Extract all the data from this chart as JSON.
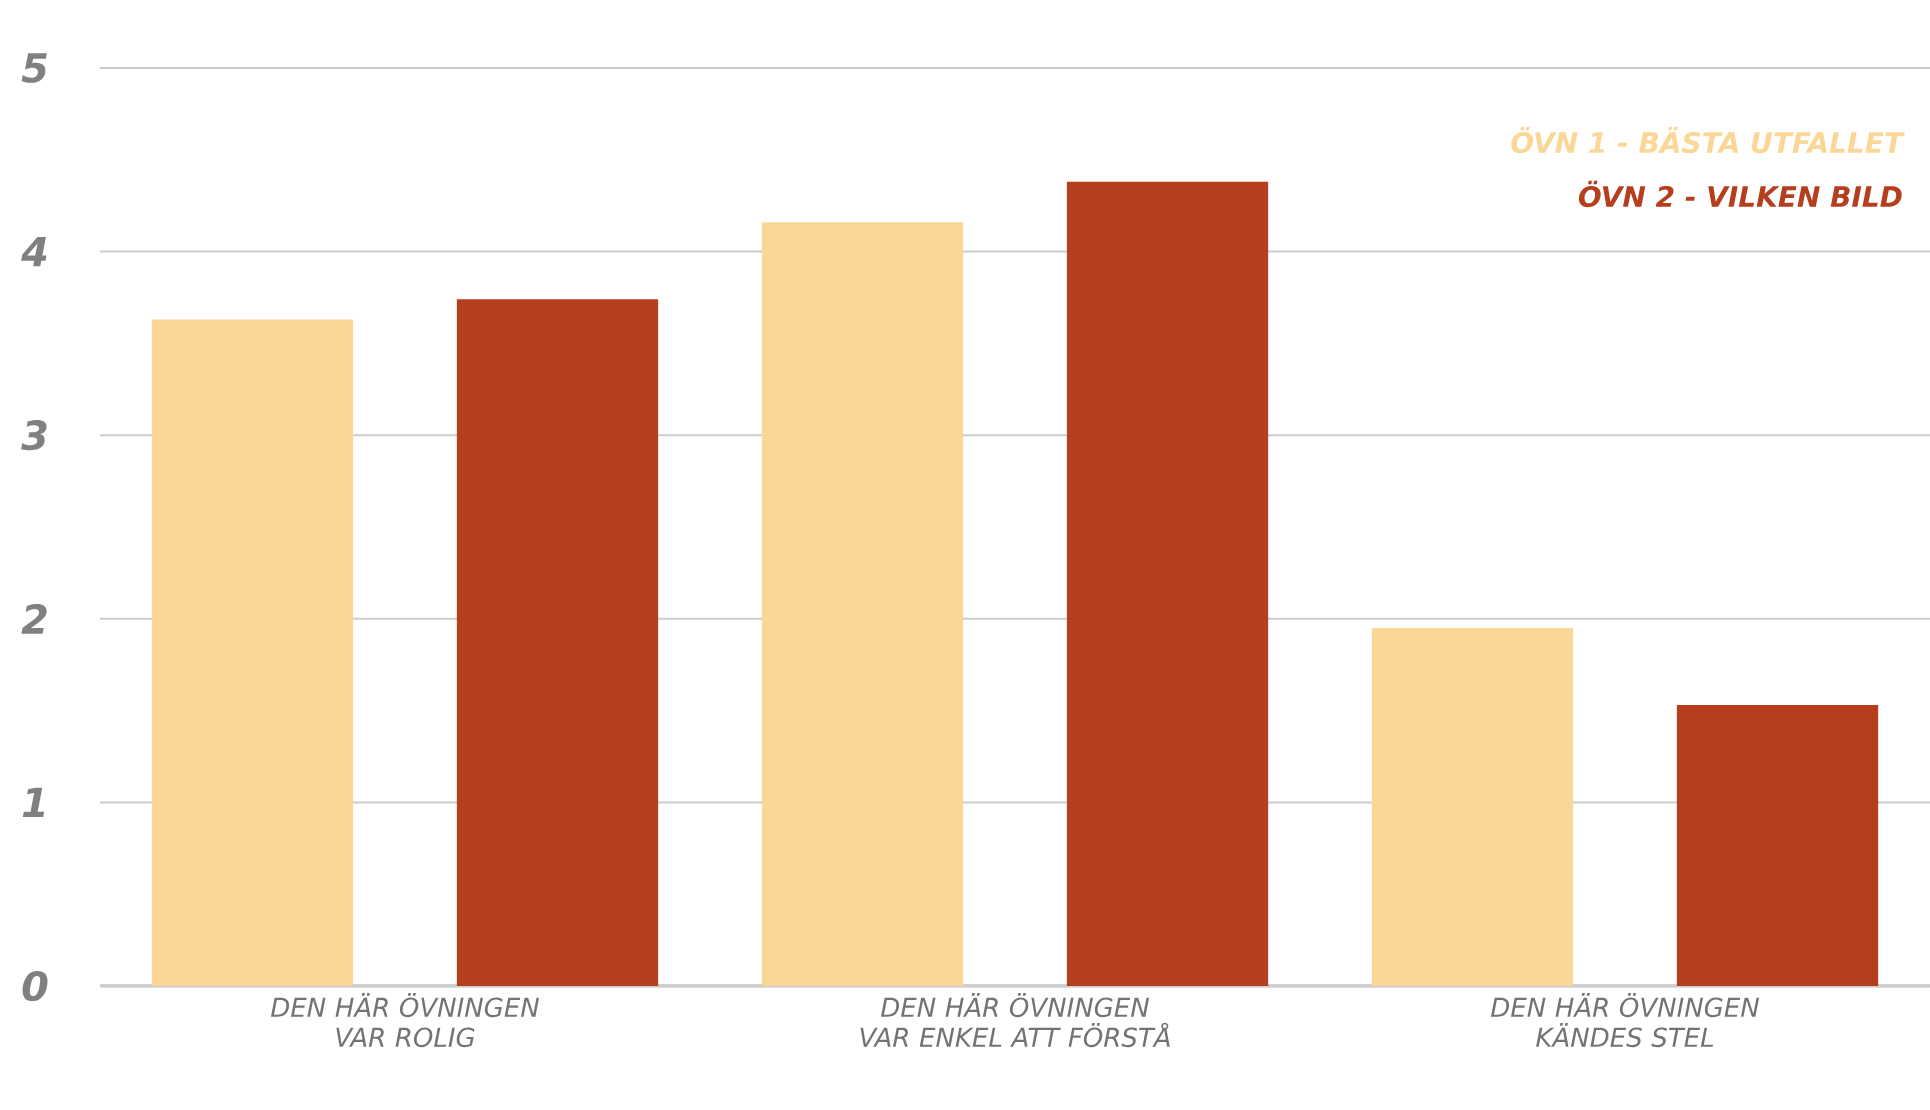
{
  "chart_data": {
    "type": "bar",
    "categories": [
      "DEN HÄR ÖVNINGEN VAR ROLIG",
      "DEN HÄR ÖVNINGEN VAR ENKEL ATT FÖRSTÅ",
      "DEN HÄR ÖVNINGEN KÄNDES STEL"
    ],
    "series": [
      {
        "name": "ÖVN 1 - BÄSTA UTFALLET",
        "color": "#fad797",
        "values": [
          3.63,
          4.16,
          1.95
        ]
      },
      {
        "name": "ÖVN 2 - VILKEN BILD",
        "color": "#b53e1e",
        "values": [
          3.74,
          4.38,
          1.53
        ]
      }
    ],
    "ylim": [
      0,
      5
    ],
    "yticks": [
      0,
      1,
      2,
      3,
      4,
      5
    ],
    "grid": "y",
    "legend": "top right"
  }
}
